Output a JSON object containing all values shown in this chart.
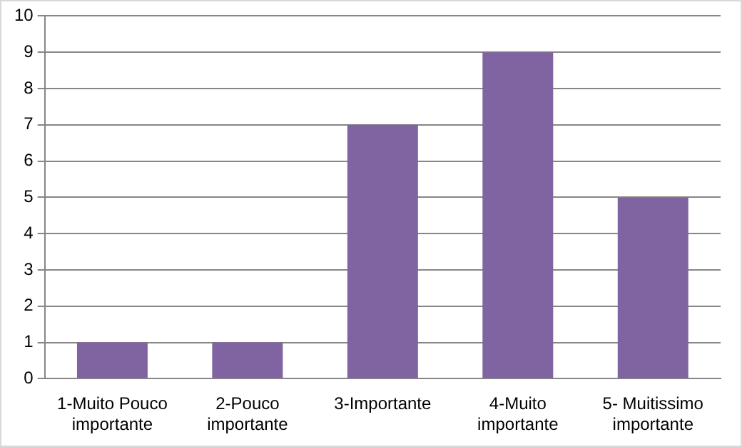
{
  "chart_data": {
    "type": "bar",
    "categories": [
      "1-Muito Pouco importante",
      "2-Pouco importante",
      "3-Importante",
      "4-Muito importante",
      "5- Muitissimo importante"
    ],
    "values": [
      1,
      1,
      7,
      9,
      5
    ],
    "color": "#8064a2",
    "ylim": [
      0,
      10
    ],
    "yticks": [
      0,
      1,
      2,
      3,
      4,
      5,
      6,
      7,
      8,
      9,
      10
    ],
    "grid": "y"
  }
}
